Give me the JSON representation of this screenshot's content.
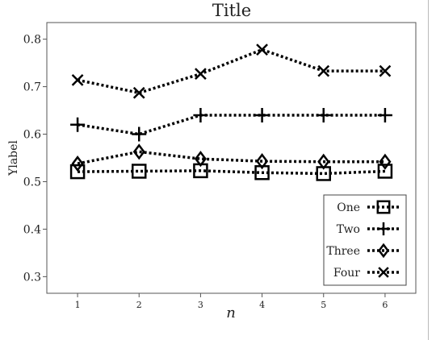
{
  "chart_data": {
    "type": "line",
    "title": "Title",
    "xlabel": "n",
    "ylabel": "Ylabel",
    "x": [
      1,
      2,
      3,
      4,
      5,
      6
    ],
    "xlim": [
      0.5,
      6.5
    ],
    "ylim": [
      0.265,
      0.835
    ],
    "yticks": [
      0.3,
      0.4,
      0.5,
      0.6,
      0.7,
      0.8
    ],
    "ytick_labels": [
      "0.3",
      "0.4",
      "0.5",
      "0.6",
      "0.7",
      "0.8"
    ],
    "xtick_labels": [
      "1",
      "2",
      "3",
      "4",
      "5",
      "6"
    ],
    "grid": false,
    "legend_position": "lower-right",
    "series": [
      {
        "name": "One",
        "marker": "square",
        "values": [
          0.521,
          0.522,
          0.523,
          0.519,
          0.517,
          0.522
        ]
      },
      {
        "name": "Two",
        "marker": "plus",
        "values": [
          0.62,
          0.6,
          0.64,
          0.64,
          0.64,
          0.64
        ]
      },
      {
        "name": "Three",
        "marker": "diamond",
        "values": [
          0.538,
          0.563,
          0.548,
          0.543,
          0.542,
          0.542
        ]
      },
      {
        "name": "Four",
        "marker": "x",
        "values": [
          0.714,
          0.687,
          0.727,
          0.778,
          0.733,
          0.733
        ]
      }
    ],
    "colors": {
      "line": "#000000",
      "frame": "#555555",
      "text": "#222222"
    }
  }
}
